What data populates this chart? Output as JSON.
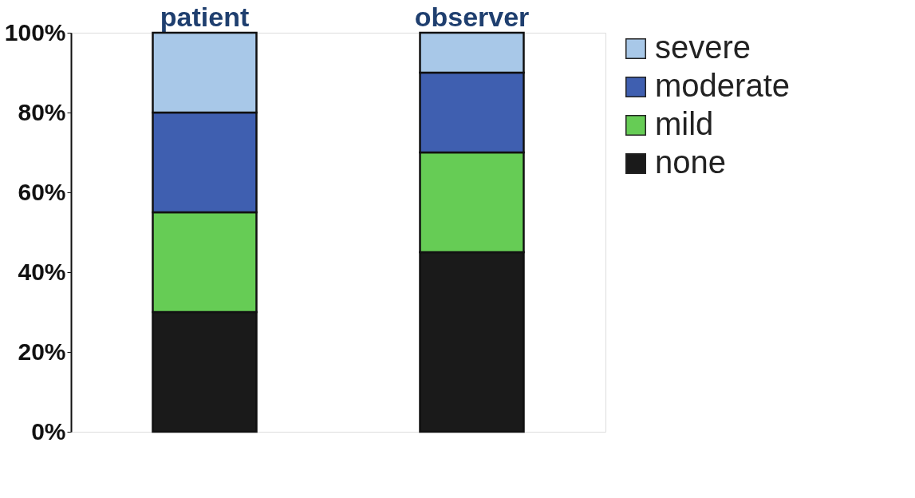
{
  "chart_data": {
    "type": "bar",
    "stacked": true,
    "categories": [
      "patient",
      "observer"
    ],
    "series": [
      {
        "name": "none",
        "color": "#1a1a1a",
        "values": [
          30,
          45
        ]
      },
      {
        "name": "mild",
        "color": "#66cc55",
        "values": [
          25,
          25
        ]
      },
      {
        "name": "moderate",
        "color": "#3f5fb0",
        "values": [
          25,
          20
        ]
      },
      {
        "name": "severe",
        "color": "#a8c8e8",
        "values": [
          20,
          10
        ]
      }
    ],
    "ylim": [
      0,
      100
    ],
    "yticks": [
      {
        "value": 0,
        "label": "0%"
      },
      {
        "value": 20,
        "label": "20%"
      },
      {
        "value": 40,
        "label": "40%"
      },
      {
        "value": 60,
        "label": "60%"
      },
      {
        "value": 80,
        "label": "80%"
      },
      {
        "value": 100,
        "label": "100%"
      }
    ],
    "grid": false,
    "legend": "right"
  }
}
